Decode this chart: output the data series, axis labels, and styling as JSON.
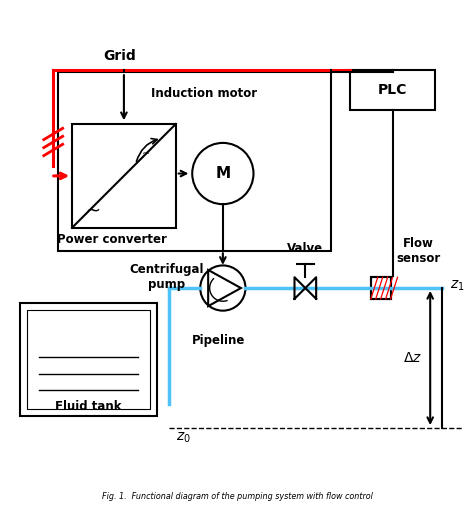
{
  "bg_color": "#ffffff",
  "black": "#000000",
  "red": "#ff0000",
  "blue": "#4fc3f7",
  "fig_caption": "Fig. 1.  Functional diagram of the pumping system with flow control",
  "labels": {
    "grid": "Grid",
    "plc": "PLC",
    "induction_motor": "Induction motor",
    "motor_M": "M",
    "power_converter": "Power converter",
    "centrifugal_pump": "Centrifugal\npump",
    "valve": "Valve",
    "flow_sensor": "Flow\nsensor",
    "pipeline": "Pipeline",
    "fluid_tank": "Fluid tank",
    "z0": "$z_0$",
    "z1": "$z_1$",
    "dz": "$\\Delta z$"
  }
}
